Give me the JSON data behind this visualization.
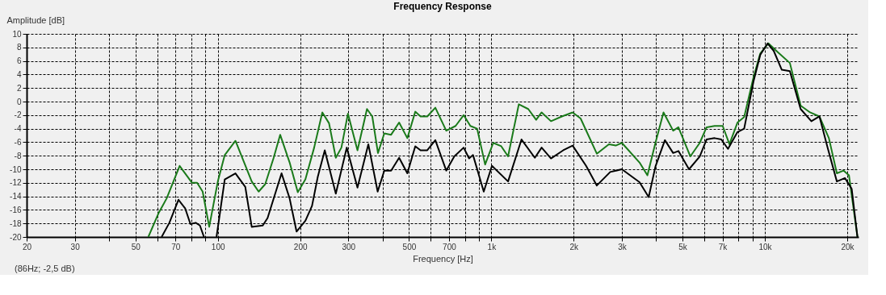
{
  "chart_data": {
    "type": "line",
    "title": "Frequency Response",
    "xlabel": "Frequency [Hz]",
    "ylabel": "Amplitude [dB]",
    "log": "x",
    "grid": true,
    "line_style": "solid",
    "marker": "none",
    "xlim": [
      20,
      22000
    ],
    "ylim": [
      -20,
      10
    ],
    "xticks": [
      20,
      30,
      {
        "value": 40,
        "label": null
      },
      50,
      {
        "value": 60,
        "label": null
      },
      70,
      {
        "value": 80,
        "label": null
      },
      {
        "value": 90,
        "label": null
      },
      100,
      200,
      300,
      {
        "value": 400,
        "label": null
      },
      500,
      {
        "value": 600,
        "label": null
      },
      700,
      {
        "value": 800,
        "label": null
      },
      {
        "value": 900,
        "label": null
      },
      {
        "value": 1000,
        "label": "1k"
      },
      {
        "value": 2000,
        "label": "2k"
      },
      {
        "value": 3000,
        "label": "3k"
      },
      {
        "value": 4000,
        "label": null
      },
      {
        "value": 5000,
        "label": "5k"
      },
      {
        "value": 6000,
        "label": null
      },
      {
        "value": 7000,
        "label": "7k"
      },
      {
        "value": 8000,
        "label": null
      },
      {
        "value": 9000,
        "label": null
      },
      {
        "value": 10000,
        "label": "10k"
      },
      {
        "value": 20000,
        "label": "20k"
      }
    ],
    "yticks": [
      -20,
      -18,
      -16,
      -14,
      -12,
      -10,
      -8,
      -6,
      -4,
      -2,
      0,
      2,
      4,
      6,
      8,
      10
    ],
    "annotations": [
      "(86Hz; -2,5 dB)"
    ],
    "series": [
      {
        "color": "#1a7a1a",
        "x": [
          55.7,
          60.7,
          65,
          72.5,
          80.5,
          84,
          88,
          93,
          100,
          106,
          116,
          133,
          141,
          149,
          160,
          169,
          183,
          196,
          209,
          225,
          241,
          255,
          270,
          283,
          299,
          324,
          351,
          367,
          385,
          406,
          430,
          460,
          493,
          527,
          551,
          583,
          624,
          684,
          740,
          792,
          838,
          887,
          949,
          1016,
          1087,
          1151,
          1260,
          1364,
          1458,
          1527,
          1652,
          1810,
          1982,
          2120,
          2430,
          2690,
          2850,
          3000,
          3480,
          3720,
          3980,
          4260,
          4620,
          4830,
          5340,
          5780,
          6120,
          6550,
          7010,
          7420,
          7940,
          8400,
          9090,
          9620,
          10300,
          11150,
          12340,
          13510,
          14630,
          15830,
          17140,
          18330,
          19410,
          20300,
          21800
        ],
        "values": [
          -20,
          -16.5,
          -14.3,
          -9.5,
          -12,
          -12,
          -13.3,
          -18.5,
          -11.8,
          -7.9,
          -5.8,
          -11.8,
          -13.3,
          -12.2,
          -8.3,
          -4.9,
          -9,
          -13.4,
          -11.5,
          -6.8,
          -1.6,
          -3.2,
          -8.3,
          -6.8,
          -1.8,
          -7.2,
          -1.1,
          -2.2,
          -7.6,
          -4.7,
          -4.9,
          -3.1,
          -5.4,
          -1.5,
          -2.2,
          -2.2,
          -0.9,
          -4.3,
          -3.6,
          -2,
          -3.6,
          -4,
          -9.3,
          -6.1,
          -6.6,
          -8.1,
          -0.4,
          -1.1,
          -2.7,
          -1.6,
          -2.9,
          -2.2,
          -1.6,
          -2.5,
          -7.7,
          -6.3,
          -6.5,
          -6.1,
          -9,
          -10.9,
          -6.1,
          -1.6,
          -4.3,
          -3.8,
          -8.1,
          -6.1,
          -3.8,
          -3.6,
          -3.6,
          -6.3,
          -3.1,
          -2.3,
          3.6,
          7.1,
          8.6,
          7.3,
          5.7,
          -0.6,
          -1.6,
          -2.2,
          -5.4,
          -10.6,
          -10.2,
          -10.9,
          -20
        ]
      },
      {
        "color": "#000000",
        "x": [
          62.3,
          66.5,
          71.8,
          76,
          79.4,
          83,
          86,
          89,
          94,
          98.9,
          106,
          116,
          126,
          133,
          146,
          152,
          171,
          183,
          194,
          209,
          221,
          232,
          246,
          270,
          296,
          324,
          355,
          384,
          406,
          430,
          460,
          493,
          527,
          551,
          583,
          624,
          684,
          732,
          792,
          829,
          857,
          938,
          1005,
          1151,
          1289,
          1442,
          1527,
          1652,
          1831,
          1982,
          2220,
          2430,
          2720,
          3000,
          3480,
          3760,
          3980,
          4310,
          4620,
          4830,
          5280,
          5780,
          6120,
          6550,
          6930,
          7330,
          7940,
          8400,
          9090,
          9620,
          10230,
          10770,
          11530,
          12340,
          13510,
          14790,
          15830,
          16950,
          18330,
          19630,
          20770,
          21800
        ],
        "values": [
          -20,
          -17.9,
          -14.5,
          -15.8,
          -18.1,
          -17.9,
          -18.3,
          -20,
          null,
          -20,
          -11.5,
          -10.6,
          -12.6,
          -18.5,
          -18.3,
          -17.2,
          -10.6,
          -14.3,
          -19.2,
          -17.6,
          -15.4,
          -11.1,
          -7.2,
          -13.6,
          -6.8,
          -12.7,
          -6.3,
          -13.3,
          -10.2,
          -10.2,
          -8.3,
          -10.6,
          -6.6,
          -7.2,
          -7.2,
          -5.7,
          -10.2,
          -8.1,
          -6.8,
          -8.4,
          -7.9,
          -13.3,
          -9.5,
          -11.8,
          -5.6,
          -8.3,
          -6.8,
          -8.4,
          -7.2,
          -6.5,
          -9.5,
          -12.4,
          -10.4,
          -10,
          -11.9,
          -14.1,
          -9.6,
          -5.7,
          -7.6,
          -7.3,
          -10,
          -8.1,
          -5.6,
          -5.4,
          -5.6,
          -7,
          -4.5,
          -4,
          3,
          6.9,
          8.6,
          7.5,
          4.7,
          4.5,
          -1.1,
          -2.9,
          -2.2,
          -6.8,
          -11.8,
          -11.3,
          -12.9,
          -20
        ]
      }
    ]
  }
}
